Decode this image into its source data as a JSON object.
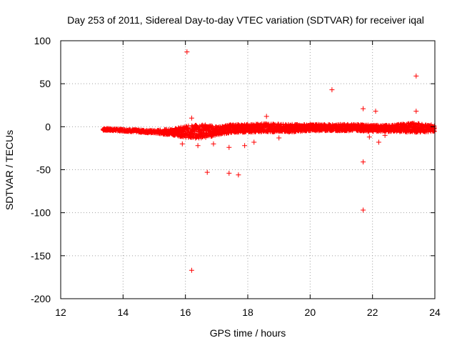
{
  "chart_data": {
    "type": "scatter",
    "title": "Day 253 of 2011, Sidereal Day-to-day VTEC variation (SDTVAR) for receiver iqal",
    "xlabel": "GPS time / hours",
    "ylabel": "SDTVAR / TECUs",
    "xlim": [
      12,
      24
    ],
    "ylim": [
      -200,
      100
    ],
    "xticks": [
      12,
      14,
      16,
      18,
      20,
      22,
      24
    ],
    "yticks": [
      -200,
      -150,
      -100,
      -50,
      0,
      50,
      100
    ],
    "grid": true,
    "marker": "plus",
    "color": "#ff0000",
    "series": [
      {
        "name": "SDTVAR",
        "band": {
          "x": [
            13.35,
            14.0,
            15.0,
            15.6,
            16.2,
            16.7,
            17.0,
            17.5,
            18.0,
            18.6,
            19.2,
            20.0,
            20.8,
            21.5,
            22.0,
            22.6,
            23.2,
            24.0
          ],
          "y_center": [
            -3.0,
            -4.0,
            -6.0,
            -6.0,
            -6.0,
            -5.0,
            -5.0,
            -2.0,
            -2.0,
            -1.0,
            -2.0,
            -1.0,
            -1.0,
            -1.0,
            -2.0,
            -2.0,
            -1.0,
            -2.0
          ],
          "half_width": [
            1.5,
            1.5,
            2.0,
            4.0,
            8.0,
            8.0,
            5.0,
            5.0,
            5.0,
            5.0,
            5.0,
            4.0,
            4.0,
            4.0,
            4.0,
            4.0,
            6.0,
            4.0
          ]
        },
        "outliers": [
          {
            "x": 16.05,
            "y": 87
          },
          {
            "x": 16.2,
            "y": -167
          },
          {
            "x": 16.7,
            "y": -53
          },
          {
            "x": 17.4,
            "y": -54
          },
          {
            "x": 17.7,
            "y": -56
          },
          {
            "x": 20.7,
            "y": 43
          },
          {
            "x": 21.7,
            "y": -41
          },
          {
            "x": 21.7,
            "y": -97
          },
          {
            "x": 23.4,
            "y": 59
          },
          {
            "x": 23.4,
            "y": 18
          },
          {
            "x": 22.1,
            "y": 18
          },
          {
            "x": 21.7,
            "y": 21
          },
          {
            "x": 17.4,
            "y": -24
          },
          {
            "x": 16.2,
            "y": 10
          },
          {
            "x": 15.9,
            "y": -20
          },
          {
            "x": 16.4,
            "y": -22
          },
          {
            "x": 17.9,
            "y": -22
          },
          {
            "x": 18.2,
            "y": -18
          },
          {
            "x": 22.2,
            "y": -18
          },
          {
            "x": 22.4,
            "y": -10
          },
          {
            "x": 21.9,
            "y": -12
          },
          {
            "x": 19.0,
            "y": -13
          },
          {
            "x": 18.6,
            "y": 12
          },
          {
            "x": 16.9,
            "y": -20
          }
        ]
      }
    ]
  }
}
